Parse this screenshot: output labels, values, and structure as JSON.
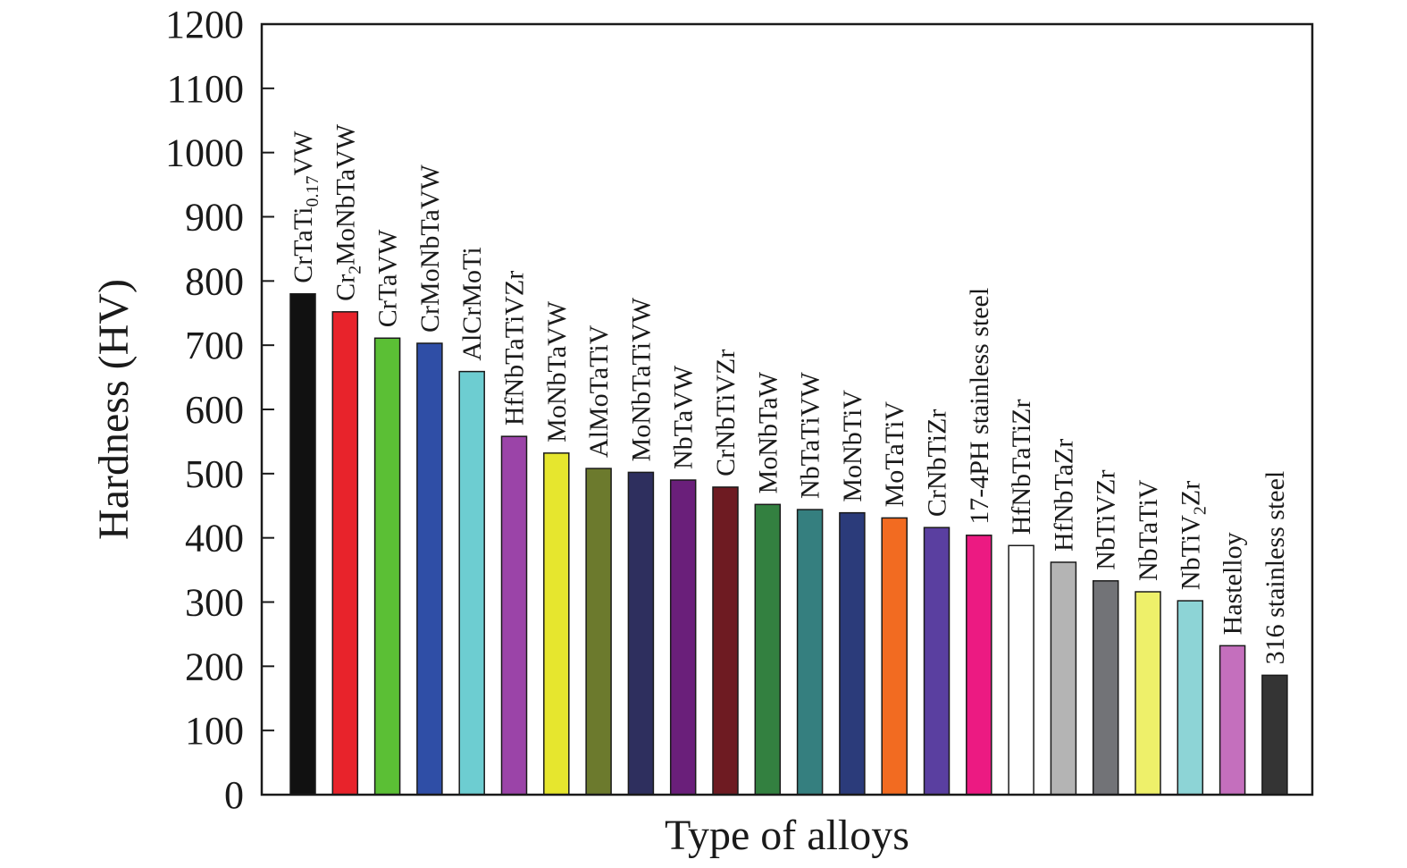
{
  "chart_data": {
    "type": "bar",
    "title": "",
    "xlabel": "Type of alloys",
    "ylabel": "Hardness (HV)",
    "ylim": [
      0,
      1200
    ],
    "yticks": [
      0,
      100,
      200,
      300,
      400,
      500,
      600,
      700,
      800,
      900,
      1000,
      1100,
      1200
    ],
    "grid": false,
    "legend": "none",
    "bars": [
      {
        "label": "CrTaTi0.17VW",
        "label_parts": [
          {
            "t": "CrTaTi"
          },
          {
            "t": "0.17",
            "sub": true
          },
          {
            "t": "VW"
          }
        ],
        "value": 780,
        "color": "#111111"
      },
      {
        "label": "Cr2MoNbTaVW",
        "label_parts": [
          {
            "t": "Cr"
          },
          {
            "t": "2",
            "sub": true
          },
          {
            "t": "MoNbTaVW"
          }
        ],
        "value": 752,
        "color": "#e8232b"
      },
      {
        "label": "CrTaVW",
        "value": 711,
        "color": "#5bbf35"
      },
      {
        "label": "CrMoNbTaVW",
        "value": 703,
        "color": "#2f4ea6"
      },
      {
        "label": "AlCrMoTi",
        "value": 659,
        "color": "#6dcdd1"
      },
      {
        "label": "HfNbTaTiVZr",
        "value": 558,
        "color": "#9b44a8"
      },
      {
        "label": "MoNbTaVW",
        "value": 532,
        "color": "#e6e62e"
      },
      {
        "label": "AlMoTaTiV",
        "value": 508,
        "color": "#6c7a2d"
      },
      {
        "label": "MoNbTaTiVW",
        "value": 502,
        "color": "#2e2f5e"
      },
      {
        "label": "NbTaVW",
        "value": 490,
        "color": "#6a1f7a"
      },
      {
        "label": "CrNbTiVZr",
        "value": 479,
        "color": "#6e1b22"
      },
      {
        "label": "MoNbTaW",
        "value": 452,
        "color": "#338040"
      },
      {
        "label": "NbTaTiVW",
        "value": 444,
        "color": "#357f7f"
      },
      {
        "label": "MoNbTiV",
        "value": 439,
        "color": "#2b3b7a"
      },
      {
        "label": "MoTaTiV",
        "value": 431,
        "color": "#f26b21"
      },
      {
        "label": "CrNbTiZr",
        "value": 416,
        "color": "#5a3fa0"
      },
      {
        "label": "17-4PH stainless steel",
        "value": 404,
        "color": "#ec1a82"
      },
      {
        "label": "HfNbTaTiZr",
        "value": 388,
        "color": "#ffffff"
      },
      {
        "label": "HfNbTaZr",
        "value": 362,
        "color": "#b4b4b4"
      },
      {
        "label": "NbTiVZr",
        "value": 333,
        "color": "#727377"
      },
      {
        "label": "NbTaTiV",
        "value": 316,
        "color": "#eef06a"
      },
      {
        "label": "NbTiV2Zr",
        "label_parts": [
          {
            "t": "NbTiV"
          },
          {
            "t": "2",
            "sub": true
          },
          {
            "t": "Zr"
          }
        ],
        "value": 302,
        "color": "#8dd4d6"
      },
      {
        "label": "Hastelloy",
        "value": 232,
        "color": "#c46fbd"
      },
      {
        "label": "316 stainless steel",
        "value": 186,
        "color": "#343434"
      }
    ]
  }
}
